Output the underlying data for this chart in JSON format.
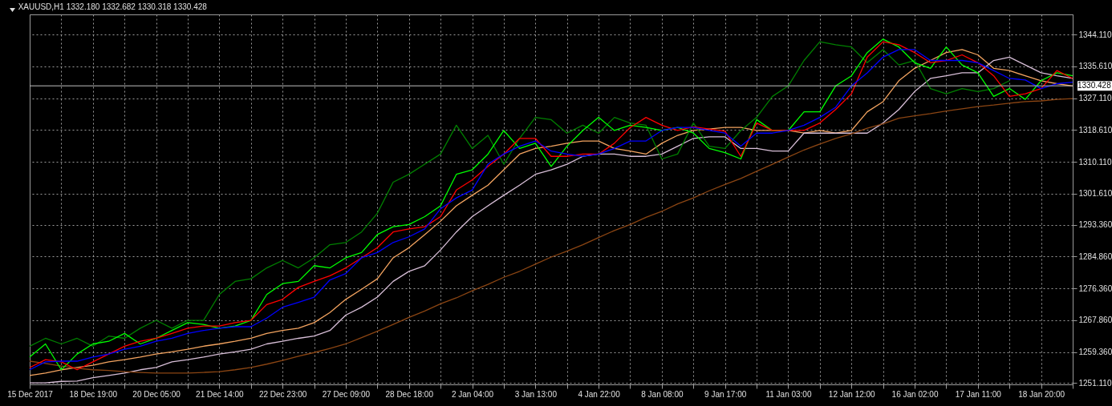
{
  "chart_data": {
    "type": "line",
    "title": "XAUUSD,H1  1332.180 1332.682 1330.318 1330.428",
    "categories": [
      "15 Dec 2017",
      null,
      null,
      null,
      "18 Dec 19:00",
      null,
      null,
      null,
      "20 Dec 05:00",
      null,
      null,
      null,
      "21 Dec 14:00",
      null,
      null,
      null,
      "22 Dec 23:00",
      null,
      null,
      null,
      "27 Dec 09:00",
      null,
      null,
      null,
      "28 Dec 18:00",
      null,
      null,
      null,
      "2 Jan 04:00",
      null,
      null,
      null,
      "3 Jan 13:00",
      null,
      null,
      null,
      "4 Jan 22:00",
      null,
      null,
      null,
      "8 Jan 08:00",
      null,
      null,
      null,
      "9 Jan 17:00",
      null,
      null,
      null,
      "11 Jan 03:00",
      null,
      null,
      null,
      "12 Jan 12:00",
      null,
      null,
      null,
      "16 Jan 02:00",
      null,
      null,
      null,
      "17 Jan 11:00",
      null,
      null,
      null,
      "18 Jan 20:00",
      null,
      null
    ],
    "series": [
      {
        "color": "#f4a460",
        "values": [
          1253.1,
          1253.7,
          1254.6,
          1255.2,
          1255.8,
          1256.7,
          1257.3,
          1258.0,
          1258.8,
          1259.4,
          1260.1,
          1260.9,
          1261.5,
          1262.2,
          1263.0,
          1264.3,
          1265.1,
          1265.7,
          1267.2,
          1269.9,
          1273.4,
          1276.1,
          1278.9,
          1284.5,
          1287.2,
          1290.7,
          1294.3,
          1298.4,
          1301.2,
          1303.9,
          1308.0,
          1312.2,
          1313.7,
          1314.3,
          1315.1,
          1315.7,
          1315.7,
          1313.7,
          1313.0,
          1312.2,
          1315.1,
          1317.2,
          1318.5,
          1318.9,
          1319.3,
          1319.3,
          1318.5,
          1318.5,
          1318.5,
          1317.8,
          1318.5,
          1317.8,
          1318.5,
          1323.5,
          1326.2,
          1331.8,
          1335.1,
          1337.2,
          1339.3,
          1340.1,
          1338.7,
          1335.1,
          1334.5,
          1333.1,
          1331.8,
          1331.0,
          1330.4
        ]
      },
      {
        "color": "#d8bfd8",
        "values": [
          1251.1,
          1251.1,
          1251.5,
          1251.6,
          1252.5,
          1253.1,
          1253.7,
          1254.6,
          1255.2,
          1256.7,
          1257.3,
          1258.0,
          1258.8,
          1259.4,
          1260.1,
          1261.5,
          1262.2,
          1263.0,
          1263.6,
          1265.1,
          1269.2,
          1271.3,
          1274.0,
          1278.2,
          1280.9,
          1282.4,
          1286.6,
          1291.4,
          1295.5,
          1298.4,
          1301.2,
          1303.9,
          1306.8,
          1308.0,
          1309.5,
          1311.6,
          1312.2,
          1312.2,
          1311.6,
          1311.6,
          1312.2,
          1314.3,
          1316.4,
          1316.8,
          1316.8,
          1313.7,
          1313.7,
          1313.0,
          1313.0,
          1317.8,
          1317.8,
          1317.8,
          1317.8,
          1317.8,
          1320.5,
          1324.1,
          1328.9,
          1332.4,
          1333.1,
          1333.9,
          1333.9,
          1337.2,
          1338.1,
          1336.0,
          1333.9,
          1333.1,
          1332.4
        ]
      },
      {
        "color": "#8b4513",
        "values": [
          1256.9,
          1256.3,
          1255.6,
          1255.0,
          1254.6,
          1254.4,
          1254.1,
          1253.9,
          1253.7,
          1253.7,
          1253.7,
          1253.9,
          1254.1,
          1254.6,
          1255.2,
          1256.1,
          1257.1,
          1258.2,
          1259.2,
          1260.3,
          1261.5,
          1263.2,
          1264.9,
          1266.7,
          1268.6,
          1270.3,
          1272.2,
          1273.8,
          1275.7,
          1277.4,
          1279.3,
          1280.9,
          1282.8,
          1284.7,
          1286.3,
          1288.0,
          1289.9,
          1291.8,
          1293.4,
          1295.3,
          1296.9,
          1298.9,
          1300.5,
          1302.4,
          1304.1,
          1305.7,
          1307.6,
          1309.5,
          1311.4,
          1313.3,
          1314.9,
          1316.4,
          1317.6,
          1319.1,
          1320.3,
          1321.8,
          1322.4,
          1323.0,
          1323.7,
          1324.3,
          1324.9,
          1325.3,
          1325.8,
          1326.2,
          1326.4,
          1326.8,
          1327.0
        ]
      },
      {
        "color": "#008000",
        "values": [
          1260.9,
          1263.0,
          1261.5,
          1263.0,
          1260.9,
          1263.6,
          1263.0,
          1265.7,
          1267.8,
          1265.7,
          1267.8,
          1267.8,
          1274.7,
          1278.2,
          1278.9,
          1281.8,
          1283.8,
          1281.8,
          1284.5,
          1288.0,
          1288.6,
          1291.4,
          1296.4,
          1304.7,
          1306.8,
          1309.5,
          1312.2,
          1319.9,
          1313.7,
          1317.2,
          1309.5,
          1316.4,
          1322.0,
          1321.4,
          1317.8,
          1319.9,
          1317.8,
          1322.0,
          1320.5,
          1319.9,
          1310.9,
          1312.2,
          1320.5,
          1314.3,
          1313.7,
          1318.5,
          1322.0,
          1327.6,
          1330.4,
          1337.2,
          1342.2,
          1341.4,
          1340.8,
          1336.6,
          1340.1,
          1336.0,
          1337.2,
          1329.7,
          1328.3,
          1329.7,
          1328.9,
          1329.7,
          1331.8,
          null,
          null,
          null,
          null
        ]
      },
      {
        "color": "#00ff00",
        "values": [
          1258.0,
          1261.5,
          1254.6,
          1258.8,
          1261.5,
          1262.2,
          1264.3,
          1261.5,
          1263.0,
          1265.1,
          1267.2,
          1266.7,
          1265.7,
          1266.3,
          1267.8,
          1274.7,
          1277.6,
          1278.2,
          1282.4,
          1281.8,
          1284.5,
          1285.9,
          1290.7,
          1292.8,
          1293.4,
          1295.5,
          1298.4,
          1306.8,
          1308.0,
          1312.2,
          1318.5,
          1313.7,
          1315.1,
          1308.9,
          1314.3,
          1318.5,
          1322.0,
          1318.5,
          1319.9,
          1319.3,
          1318.5,
          1319.3,
          1317.8,
          1313.7,
          1312.6,
          1310.9,
          1321.4,
          1318.5,
          1318.5,
          1323.5,
          1323.5,
          1330.4,
          1333.1,
          1339.3,
          1342.9,
          1340.8,
          1336.6,
          1335.1,
          1340.8,
          1336.0,
          1333.9,
          1327.6,
          1329.7,
          1326.8,
          1331.8,
          1333.9,
          1333.1
        ]
      },
      {
        "color": "#ff0000",
        "values": [
          1255.2,
          1257.3,
          1256.7,
          1254.6,
          1256.7,
          1258.8,
          1260.9,
          1262.2,
          1263.0,
          1264.3,
          1265.7,
          1266.3,
          1266.3,
          1267.2,
          1267.8,
          1272.0,
          1273.4,
          1276.6,
          1278.2,
          1279.7,
          1281.8,
          1284.5,
          1287.2,
          1291.4,
          1292.2,
          1292.8,
          1295.5,
          1302.6,
          1305.3,
          1308.9,
          1312.2,
          1316.4,
          1316.4,
          1311.6,
          1311.6,
          1312.2,
          1312.2,
          1315.1,
          1319.3,
          1322.0,
          1319.9,
          1318.5,
          1319.5,
          1318.9,
          1318.3,
          1311.6,
          1320.5,
          1318.5,
          1318.5,
          1318.5,
          1320.5,
          1324.1,
          1328.3,
          1338.1,
          1342.2,
          1341.4,
          1339.3,
          1336.6,
          1337.2,
          1338.7,
          1336.6,
          1333.1,
          1327.6,
          1328.3,
          1329.7,
          1334.5,
          1332.4
        ]
      },
      {
        "color": "#0000ff",
        "values": [
          1254.6,
          1256.7,
          1256.9,
          1256.9,
          1258.0,
          1258.8,
          1260.1,
          1260.9,
          1262.2,
          1263.0,
          1264.3,
          1265.1,
          1265.7,
          1266.1,
          1266.1,
          1268.4,
          1271.3,
          1272.6,
          1274.0,
          1278.6,
          1280.3,
          1284.5,
          1285.9,
          1288.6,
          1290.1,
          1292.2,
          1297.6,
          1300.5,
          1302.6,
          1309.5,
          1312.2,
          1314.3,
          1315.7,
          1313.0,
          1312.2,
          1311.6,
          1312.2,
          1313.7,
          1315.7,
          1315.7,
          1318.5,
          1319.3,
          1319.3,
          1318.5,
          1317.8,
          1314.3,
          1317.8,
          1317.8,
          1318.5,
          1319.9,
          1322.0,
          1324.7,
          1330.4,
          1333.9,
          1338.1,
          1340.1,
          1340.1,
          1337.2,
          1337.2,
          1337.2,
          1336.6,
          1334.5,
          1332.4,
          1332.0,
          1329.7,
          1331.0,
          1331.4
        ]
      }
    ],
    "ylim": [
      1250.7,
      1349.5
    ],
    "yticks": [
      {
        "value": 1251.11,
        "label": "1251.110"
      },
      {
        "value": 1259.36,
        "label": "1259.360"
      },
      {
        "value": 1267.86,
        "label": "1267.860"
      },
      {
        "value": 1276.36,
        "label": "1276.360"
      },
      {
        "value": 1284.86,
        "label": "1284.860"
      },
      {
        "value": 1293.36,
        "label": "1293.360"
      },
      {
        "value": 1301.61,
        "label": "1301.610"
      },
      {
        "value": 1310.11,
        "label": "1310.110"
      },
      {
        "value": 1318.61,
        "label": "1318.610"
      },
      {
        "value": 1327.11,
        "label": "1327.110"
      },
      {
        "value": 1335.61,
        "label": "1335.610"
      },
      {
        "value": 1344.11,
        "label": "1344.110"
      }
    ],
    "grid": true,
    "ref_lines": [
      {
        "axis": "y",
        "value": 1330.428,
        "label": "1330.428",
        "color": "#c0c0c0"
      }
    ]
  }
}
